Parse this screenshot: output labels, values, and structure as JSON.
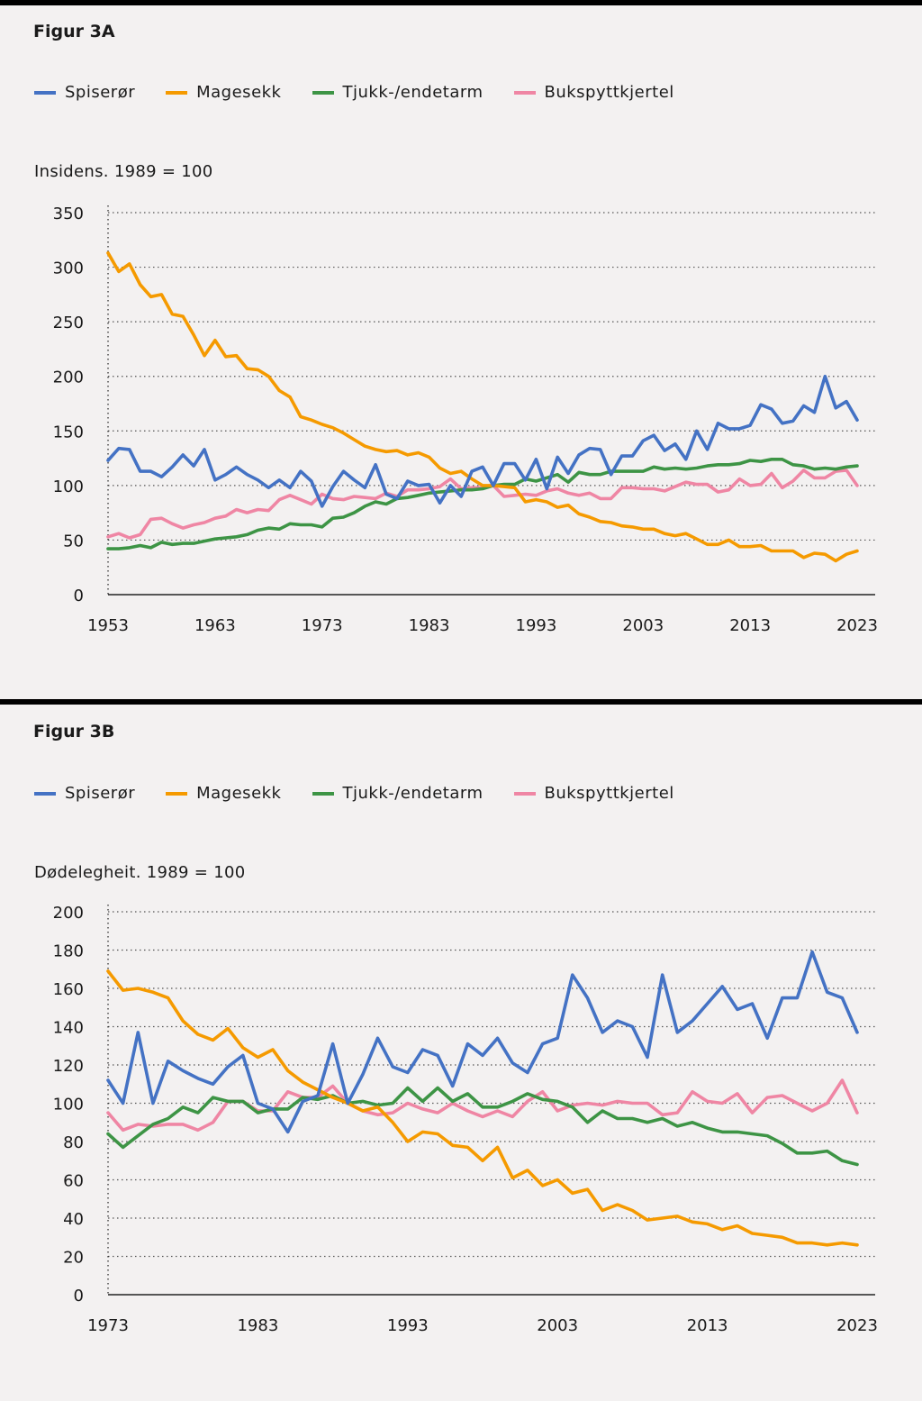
{
  "colors": {
    "Spiserør": "#4472c4",
    "Magesekk": "#f59a00",
    "Tjukk-/endetarm": "#3d9445",
    "Bukspyttkjertel": "#ef86a4"
  },
  "chart_data": [
    {
      "type": "line",
      "title": "Figur 3A",
      "ylabel": "Insidens. 1989 = 100",
      "xlabel": "",
      "x_start": 1953,
      "x_end": 2023,
      "xticks": [
        "1953",
        "1963",
        "1973",
        "1983",
        "1993",
        "2003",
        "2013",
        "2023"
      ],
      "yticks": [
        "0",
        "50",
        "100",
        "150",
        "200",
        "250",
        "300",
        "350"
      ],
      "ylim": [
        0,
        350
      ],
      "grid": "horizontal dotted",
      "legend": "top",
      "series": [
        {
          "name": "Spiserør",
          "values": [
            123,
            134,
            133,
            113,
            113,
            108,
            117,
            128,
            118,
            133,
            105,
            110,
            117,
            110,
            105,
            98,
            105,
            98,
            113,
            104,
            81,
            99,
            113,
            105,
            98,
            119,
            92,
            88,
            104,
            100,
            101,
            84,
            100,
            90,
            113,
            117,
            100,
            120,
            120,
            105,
            124,
            97,
            126,
            111,
            128,
            134,
            133,
            110,
            127,
            127,
            141,
            146,
            132,
            138,
            124,
            150,
            133,
            157,
            152,
            152,
            155,
            174,
            170,
            157,
            159,
            173,
            167,
            200,
            171,
            177,
            160
          ]
        },
        {
          "name": "Magesekk",
          "values": [
            313,
            296,
            303,
            284,
            273,
            275,
            257,
            255,
            238,
            219,
            233,
            218,
            219,
            207,
            206,
            200,
            187,
            181,
            163,
            160,
            156,
            153,
            148,
            142,
            136,
            133,
            131,
            132,
            128,
            130,
            126,
            116,
            111,
            113,
            106,
            100,
            100,
            99,
            98,
            85,
            87,
            85,
            80,
            82,
            74,
            71,
            67,
            66,
            63,
            62,
            60,
            60,
            56,
            54,
            56,
            51,
            46,
            46,
            50,
            44,
            44,
            45,
            40,
            40,
            40,
            34,
            38,
            37,
            31,
            37,
            40
          ]
        },
        {
          "name": "Tjukk-/endetarm",
          "values": [
            42,
            42,
            43,
            45,
            43,
            48,
            46,
            47,
            47,
            49,
            51,
            52,
            53,
            55,
            59,
            61,
            60,
            65,
            64,
            64,
            62,
            70,
            71,
            75,
            81,
            85,
            83,
            88,
            89,
            91,
            93,
            94,
            95,
            96,
            96,
            97,
            100,
            101,
            101,
            106,
            104,
            107,
            110,
            103,
            112,
            110,
            110,
            113,
            113,
            113,
            113,
            117,
            115,
            116,
            115,
            116,
            118,
            119,
            119,
            120,
            123,
            122,
            124,
            124,
            119,
            118,
            115,
            116,
            115,
            117,
            118
          ]
        },
        {
          "name": "Bukspyttkjertel",
          "values": [
            53,
            56,
            52,
            55,
            69,
            70,
            65,
            61,
            64,
            66,
            70,
            72,
            78,
            75,
            78,
            77,
            87,
            91,
            87,
            83,
            92,
            88,
            87,
            90,
            89,
            88,
            93,
            90,
            96,
            96,
            97,
            99,
            106,
            97,
            98,
            98,
            100,
            90,
            91,
            92,
            91,
            95,
            97,
            93,
            91,
            93,
            88,
            88,
            98,
            98,
            97,
            97,
            95,
            99,
            103,
            101,
            101,
            94,
            96,
            106,
            100,
            101,
            111,
            98,
            104,
            114,
            107,
            107,
            113,
            114,
            100
          ]
        }
      ]
    },
    {
      "type": "line",
      "title": "Figur 3B",
      "ylabel": "Dødelegheit. 1989 = 100",
      "xlabel": "",
      "x_start": 1973,
      "x_end": 2023,
      "xticks": [
        "1973",
        "1983",
        "1993",
        "2003",
        "2013",
        "2023"
      ],
      "yticks": [
        "0",
        "20",
        "40",
        "60",
        "80",
        "100",
        "120",
        "140",
        "160",
        "180",
        "200"
      ],
      "ylim": [
        0,
        200
      ],
      "grid": "horizontal dotted",
      "legend": "top",
      "series": [
        {
          "name": "Spiserør",
          "values": [
            112,
            100,
            137,
            100,
            122,
            117,
            113,
            110,
            119,
            125,
            100,
            97,
            85,
            101,
            104,
            131,
            100,
            115,
            134,
            119,
            116,
            128,
            125,
            109,
            131,
            125,
            134,
            121,
            116,
            131,
            134,
            167,
            155,
            137,
            143,
            140,
            124,
            167,
            137,
            143,
            152,
            161,
            149,
            152,
            134,
            155,
            155,
            179,
            158,
            155,
            137
          ]
        },
        {
          "name": "Magesekk",
          "values": [
            169,
            159,
            160,
            158,
            155,
            143,
            136,
            133,
            139,
            129,
            124,
            128,
            117,
            111,
            107,
            103,
            100,
            96,
            98,
            90,
            80,
            85,
            84,
            78,
            77,
            70,
            77,
            61,
            65,
            57,
            60,
            53,
            55,
            44,
            47,
            44,
            39,
            40,
            41,
            38,
            37,
            34,
            36,
            32,
            31,
            30,
            27,
            27,
            26,
            27,
            26
          ]
        },
        {
          "name": "Tjukk-/endetarm",
          "values": [
            84,
            77,
            83,
            89,
            92,
            98,
            95,
            103,
            101,
            101,
            95,
            97,
            97,
            103,
            102,
            104,
            100,
            101,
            99,
            100,
            108,
            101,
            108,
            101,
            105,
            98,
            98,
            101,
            105,
            102,
            101,
            98,
            90,
            96,
            92,
            92,
            90,
            92,
            88,
            90,
            87,
            85,
            85,
            84,
            83,
            79,
            74,
            74,
            75,
            70,
            68
          ]
        },
        {
          "name": "Bukspyttkjertel",
          "values": [
            95,
            86,
            89,
            88,
            89,
            89,
            86,
            90,
            101,
            101,
            96,
            96,
            106,
            103,
            103,
            109,
            100,
            96,
            94,
            95,
            100,
            97,
            95,
            100,
            96,
            93,
            96,
            93,
            101,
            106,
            96,
            99,
            100,
            99,
            101,
            100,
            100,
            94,
            95,
            106,
            101,
            100,
            105,
            95,
            103,
            104,
            100,
            96,
            100,
            112,
            95
          ]
        }
      ]
    }
  ]
}
